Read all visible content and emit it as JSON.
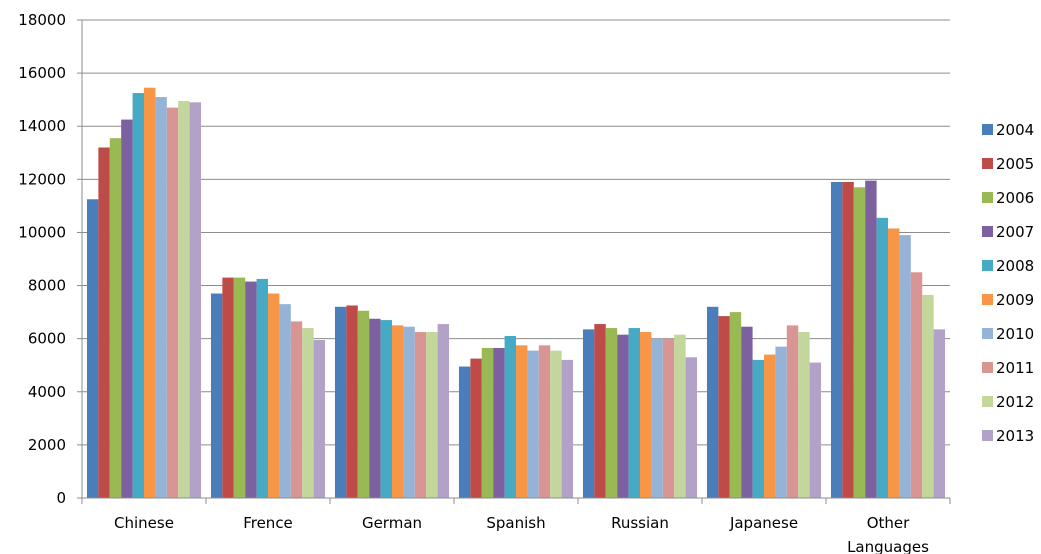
{
  "chart_data": {
    "type": "bar",
    "title": "",
    "xlabel": "",
    "ylabel": "",
    "ylim": [
      0,
      18000
    ],
    "yticks": [
      0,
      2000,
      4000,
      6000,
      8000,
      10000,
      12000,
      14000,
      16000,
      18000
    ],
    "grid": true,
    "legend_position": "right",
    "categories": [
      "Chinese",
      "Frence",
      "German",
      "Spanish",
      "Russian",
      "Japanese",
      "Other Languages"
    ],
    "series": [
      {
        "name": "2004",
        "color": "#4a7ebb",
        "values": [
          11250,
          7700,
          7200,
          4950,
          6350,
          7200,
          11900
        ]
      },
      {
        "name": "2005",
        "color": "#be4b48",
        "values": [
          13200,
          8300,
          7250,
          5250,
          6550,
          6850,
          11900
        ]
      },
      {
        "name": "2006",
        "color": "#98b954",
        "values": [
          13550,
          8300,
          7050,
          5650,
          6400,
          7000,
          11700
        ]
      },
      {
        "name": "2007",
        "color": "#7d60a0",
        "values": [
          14250,
          8150,
          6750,
          5650,
          6150,
          6450,
          11950
        ]
      },
      {
        "name": "2008",
        "color": "#46aac4",
        "values": [
          15250,
          8250,
          6700,
          6100,
          6400,
          5200,
          10550
        ]
      },
      {
        "name": "2009",
        "color": "#f79646",
        "values": [
          15450,
          7700,
          6500,
          5750,
          6250,
          5400,
          10150
        ]
      },
      {
        "name": "2010",
        "color": "#95b3d7",
        "values": [
          15100,
          7300,
          6450,
          5550,
          6000,
          5700,
          9900
        ]
      },
      {
        "name": "2011",
        "color": "#d99594",
        "values": [
          14700,
          6650,
          6250,
          5750,
          6000,
          6500,
          8500
        ]
      },
      {
        "name": "2012",
        "color": "#c3d69b",
        "values": [
          14950,
          6400,
          6250,
          5550,
          6150,
          6250,
          7650
        ]
      },
      {
        "name": "2013",
        "color": "#b2a2c7",
        "values": [
          14900,
          5950,
          6550,
          5200,
          5300,
          5100,
          6350
        ]
      }
    ]
  }
}
